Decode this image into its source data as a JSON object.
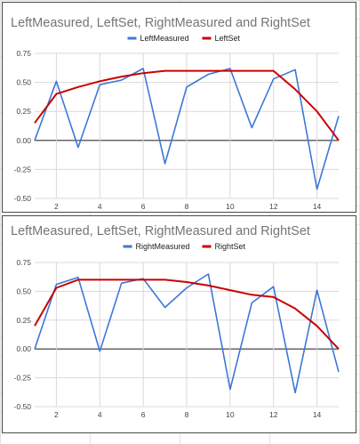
{
  "chart_data": [
    {
      "type": "line",
      "title": "LeftMeasured, LeftSet, RightMeasured and RightSet",
      "legend_position": "top",
      "grid": true,
      "xlabel": "",
      "ylabel": "",
      "xlim": [
        1,
        15
      ],
      "ylim": [
        -0.5,
        0.75
      ],
      "x_ticks": [
        "2",
        "4",
        "6",
        "8",
        "10",
        "12",
        "14"
      ],
      "y_ticks": [
        "0.75",
        "0.50",
        "0.25",
        "0.00",
        "-0.25",
        "-0.50"
      ],
      "x": [
        1,
        2,
        3,
        4,
        5,
        6,
        7,
        8,
        9,
        10,
        11,
        12,
        13,
        14,
        15
      ],
      "series": [
        {
          "name": "LeftMeasured",
          "color": "#3c78d8",
          "values": [
            0.0,
            0.51,
            -0.06,
            0.48,
            0.52,
            0.62,
            -0.2,
            0.46,
            0.57,
            0.62,
            0.11,
            0.53,
            0.61,
            -0.42,
            0.21
          ]
        },
        {
          "name": "LeftSet",
          "color": "#cc0000",
          "values": [
            0.15,
            0.4,
            0.46,
            0.51,
            0.55,
            0.58,
            0.6,
            0.6,
            0.6,
            0.6,
            0.6,
            0.6,
            0.44,
            0.25,
            0.0
          ]
        }
      ]
    },
    {
      "type": "line",
      "title": "LeftMeasured, LeftSet, RightMeasured and RightSet",
      "legend_position": "top",
      "grid": true,
      "xlabel": "",
      "ylabel": "",
      "xlim": [
        1,
        15
      ],
      "ylim": [
        -0.5,
        0.75
      ],
      "x_ticks": [
        "2",
        "4",
        "6",
        "8",
        "10",
        "12",
        "14"
      ],
      "y_ticks": [
        "0.75",
        "0.50",
        "0.25",
        "0.00",
        "-0.25",
        "-0.50"
      ],
      "x": [
        1,
        2,
        3,
        4,
        5,
        6,
        7,
        8,
        9,
        10,
        11,
        12,
        13,
        14,
        15
      ],
      "series": [
        {
          "name": "RightMeasured",
          "color": "#3c78d8",
          "values": [
            0.0,
            0.56,
            0.62,
            -0.02,
            0.57,
            0.61,
            0.36,
            0.53,
            0.65,
            -0.35,
            0.4,
            0.54,
            -0.38,
            0.51,
            -0.2
          ]
        },
        {
          "name": "RightSet",
          "color": "#cc0000",
          "values": [
            0.2,
            0.53,
            0.6,
            0.6,
            0.6,
            0.6,
            0.6,
            0.58,
            0.55,
            0.51,
            0.47,
            0.45,
            0.35,
            0.2,
            0.0
          ]
        }
      ]
    }
  ]
}
